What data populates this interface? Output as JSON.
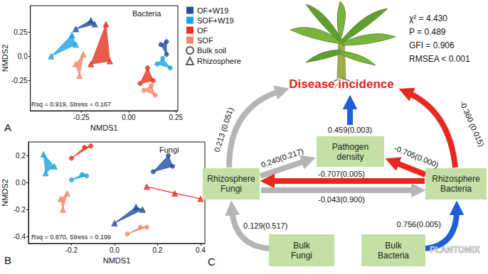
{
  "chart_data": [
    {
      "type": "scatter",
      "panel": "A",
      "title": "Bacteria",
      "xlabel": "NMDS1",
      "ylabel": "NMDS2",
      "annotation": "Rsq = 0.919, Stress = 0.167",
      "xlim": [
        -0.52,
        0.26
      ],
      "xticks": [
        -0.25,
        {
          "value": 0,
          "label": "0.00"
        },
        0.25
      ],
      "ylim": [
        -0.56,
        0.52
      ],
      "yticks": [
        -0.25,
        {
          "value": 0,
          "label": "0.0"
        },
        0.25
      ],
      "grid": false,
      "legend": "right",
      "marker_legend": [
        {
          "label": "Bulk soil",
          "marker": "circle"
        },
        {
          "label": "Rhizosphere",
          "marker": "triangle"
        }
      ],
      "series": [
        {
          "name": "OF+W19",
          "color": "#1f4e9c",
          "marker": "triangle",
          "x": [
            -0.28,
            -0.2,
            -0.18
          ],
          "y": [
            0.28,
            0.37,
            0.33
          ]
        },
        {
          "name": "OF+W19",
          "color": "#1f4e9c",
          "marker": "circle",
          "x": [
            0.17,
            0.2,
            0.2
          ],
          "y": [
            0.12,
            0.15,
            0.02
          ]
        },
        {
          "name": "SOF+W19",
          "color": "#1da4e0",
          "marker": "triangle",
          "x": [
            -0.41,
            -0.3,
            -0.28
          ],
          "y": [
            0.0,
            0.22,
            0.12
          ]
        },
        {
          "name": "SOF+W19",
          "color": "#1da4e0",
          "marker": "circle",
          "x": [
            0.15,
            0.18,
            0.22
          ],
          "y": [
            -0.08,
            -0.02,
            -0.12
          ]
        },
        {
          "name": "OF",
          "color": "#e5321e",
          "marker": "triangle",
          "x": [
            -0.12,
            -0.2,
            -0.1
          ],
          "y": [
            0.33,
            -0.08,
            -0.05
          ]
        },
        {
          "name": "OF",
          "color": "#e5321e",
          "marker": "circle",
          "x": [
            0.06,
            0.1,
            0.13
          ],
          "y": [
            -0.28,
            -0.12,
            -0.25
          ]
        },
        {
          "name": "SOF",
          "color": "#f2876b",
          "marker": "triangle",
          "x": [
            -0.28,
            -0.24,
            -0.26
          ],
          "y": [
            -0.08,
            0.02,
            -0.2
          ]
        },
        {
          "name": "SOF",
          "color": "#f2876b",
          "marker": "circle",
          "x": [
            0.08,
            0.14,
            0.12
          ],
          "y": [
            -0.35,
            -0.4,
            -0.3
          ]
        }
      ]
    },
    {
      "type": "scatter",
      "panel": "B",
      "title": "Fungi",
      "xlabel": "NMDS1",
      "ylabel": "NMDS2",
      "annotation": "Rsq = 0.870, Stress = 0.199",
      "xlim": [
        -0.4,
        0.42
      ],
      "xticks": [
        -0.2,
        {
          "value": 0,
          "label": "0.0"
        },
        0.2,
        0.4
      ],
      "ylim": [
        -0.45,
        0.3
      ],
      "yticks": [
        -0.4,
        -0.2,
        {
          "value": 0,
          "label": "0.0"
        },
        0.2
      ],
      "grid": false,
      "series": [
        {
          "name": "OF+W19",
          "color": "#1f4e9c",
          "marker": "triangle",
          "x": [
            0.0,
            0.1,
            0.13
          ],
          "y": [
            -0.3,
            -0.18,
            -0.2
          ]
        },
        {
          "name": "OF+W19",
          "color": "#1f4e9c",
          "marker": "circle",
          "x": [
            0.18,
            0.27,
            0.25
          ],
          "y": [
            0.08,
            0.12,
            0.2
          ]
        },
        {
          "name": "SOF+W19",
          "color": "#1da4e0",
          "marker": "triangle",
          "x": [
            -0.33,
            -0.32,
            -0.28
          ],
          "y": [
            0.21,
            0.07,
            0.12
          ]
        },
        {
          "name": "SOF+W19",
          "color": "#1da4e0",
          "marker": "circle",
          "x": [
            -0.2,
            -0.15,
            -0.13
          ],
          "y": [
            0.02,
            0.06,
            0.05
          ]
        },
        {
          "name": "OF",
          "color": "#e5321e",
          "marker": "triangle",
          "x": [
            0.15,
            0.28,
            0.4
          ],
          "y": [
            -0.03,
            -0.08,
            -0.12
          ]
        },
        {
          "name": "OF",
          "color": "#e5321e",
          "marker": "circle",
          "x": [
            -0.2,
            -0.14,
            -0.11
          ],
          "y": [
            0.18,
            0.26,
            0.27
          ]
        },
        {
          "name": "SOF",
          "color": "#f2876b",
          "marker": "triangle",
          "x": [
            -0.25,
            -0.22,
            -0.24
          ],
          "y": [
            -0.12,
            -0.08,
            -0.2
          ]
        },
        {
          "name": "SOF",
          "color": "#f2876b",
          "marker": "circle",
          "x": [
            0.06,
            0.12,
            0.15
          ],
          "y": [
            -0.38,
            -0.33,
            -0.33
          ]
        }
      ]
    }
  ],
  "diagram": {
    "panel": "C",
    "fit_statistics": [
      "χ² = 4.430",
      "P = 0.489",
      "GFI = 0.906",
      "RMSEA < 0.001"
    ],
    "nodes": [
      {
        "label": "Disease incidence",
        "color": "#e8201a"
      },
      {
        "label": "Pathogen density",
        "color": "#c5e0a5"
      },
      {
        "label": "Rhizosphere Fungi",
        "color": "#c5e0a5"
      },
      {
        "label": "Rhizosphere Bacteria",
        "color": "#c5e0a5"
      },
      {
        "label": "Bulk Fungi",
        "color": "#c5e0a5"
      },
      {
        "label": "Bulk Bacteria",
        "color": "#c5e0a5"
      }
    ],
    "edges": [
      {
        "from": "Rhizosphere Fungi",
        "to": "Disease incidence",
        "label": "0.213 (0.051)",
        "color": "#b5b5b5"
      },
      {
        "from": "Rhizosphere Fungi",
        "to": "Pathogen density",
        "label": "0.240(0.217)",
        "color": "#b5b5b5"
      },
      {
        "from": "Pathogen density",
        "to": "Disease incidence",
        "label": "0.459(0.003)",
        "color": "#1e5fd8"
      },
      {
        "from": "Rhizosphere Bacteria",
        "to": "Disease incidence",
        "label": "-0.360 (0.015)",
        "color": "#e8281e"
      },
      {
        "from": "Rhizosphere Bacteria",
        "to": "Pathogen density",
        "label": "-0.705(0.000)",
        "color": "#e8281e"
      },
      {
        "from": "Rhizosphere Bacteria",
        "to": "Rhizosphere Fungi",
        "label": "-0.707(0.005)",
        "color": "#e8281e"
      },
      {
        "from": "Rhizosphere Fungi",
        "to": "Rhizosphere Bacteria",
        "label": "-0.043(0.900)",
        "color": "#b5b5b5"
      },
      {
        "from": "Bulk Fungi",
        "to": "Rhizosphere Fungi",
        "label": "0.129(0.517)",
        "color": "#b5b5b5"
      },
      {
        "from": "Bulk Bacteria",
        "to": "Rhizosphere Bacteria",
        "label": "0.756(0.005)",
        "color": "#1e5fd8"
      }
    ],
    "watermark": "PLANTOMIX"
  }
}
